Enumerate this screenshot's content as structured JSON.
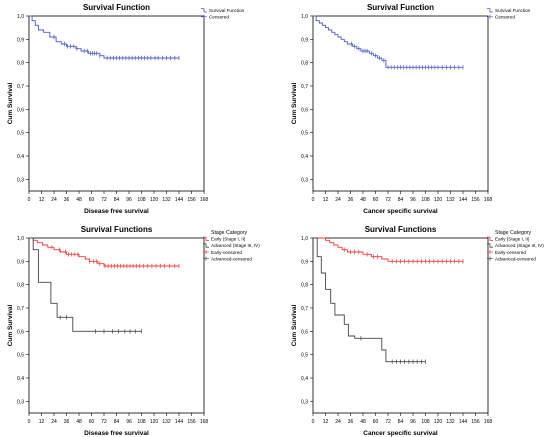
{
  "colors": {
    "blue": "#4a5cc0",
    "red": "#f03a3a",
    "black": "#444444",
    "frame": "#000000",
    "plot_bg": "#ffffff"
  },
  "chart_data": [
    {
      "type": "line",
      "title": "Survival Function",
      "xlabel": "Disease free survival",
      "ylabel": "Cum Survival",
      "xlim": [
        0,
        168
      ],
      "ylim": [
        0.25,
        1.0
      ],
      "xticks": [
        0,
        12,
        24,
        36,
        48,
        60,
        72,
        84,
        96,
        108,
        120,
        132,
        144,
        156,
        168
      ],
      "yticks": [
        0.3,
        0.4,
        0.5,
        0.6,
        0.7,
        0.8,
        0.9,
        1.0
      ],
      "ytick_labels": [
        "0,3",
        "0,4",
        "0,5",
        "0,6",
        "0,7",
        "0,8",
        "0,9",
        "1,0"
      ],
      "grid": false,
      "legend_title": "",
      "legend_position": "top-right",
      "legend": [
        "Survival Function",
        "Censored"
      ],
      "series": [
        {
          "name": "Survival Function",
          "color": "blue",
          "steps": [
            [
              0,
              1.0
            ],
            [
              3,
              0.98
            ],
            [
              6,
              0.96
            ],
            [
              9,
              0.94
            ],
            [
              14,
              0.93
            ],
            [
              20,
              0.91
            ],
            [
              26,
              0.89
            ],
            [
              31,
              0.88
            ],
            [
              36,
              0.87
            ],
            [
              45,
              0.86
            ],
            [
              50,
              0.85
            ],
            [
              57,
              0.84
            ],
            [
              68,
              0.83
            ],
            [
              72,
              0.82
            ],
            [
              144,
              0.82
            ]
          ],
          "censored": [
            24,
            34,
            37,
            40,
            43,
            46,
            53,
            56,
            59,
            61,
            63,
            65,
            68,
            75,
            78,
            81,
            84,
            87,
            90,
            93,
            96,
            99,
            102,
            105,
            108,
            111,
            114,
            117,
            121,
            124,
            128,
            132,
            136,
            140,
            144
          ]
        }
      ]
    },
    {
      "type": "line",
      "title": "Survival Function",
      "xlabel": "Cancer specific survival",
      "ylabel": "Cum Survival",
      "xlim": [
        0,
        168
      ],
      "ylim": [
        0.25,
        1.0
      ],
      "xticks": [
        0,
        12,
        24,
        36,
        48,
        60,
        72,
        84,
        96,
        108,
        120,
        132,
        144,
        156,
        168
      ],
      "yticks": [
        0.3,
        0.4,
        0.5,
        0.6,
        0.7,
        0.8,
        0.9,
        1.0
      ],
      "ytick_labels": [
        "0,3",
        "0,4",
        "0,5",
        "0,6",
        "0,7",
        "0,8",
        "0,9",
        "1,0"
      ],
      "grid": false,
      "legend_title": "",
      "legend_position": "top-right",
      "legend": [
        "Survival Function",
        "Censored"
      ],
      "series": [
        {
          "name": "Survival Function",
          "color": "blue",
          "steps": [
            [
              0,
              1.0
            ],
            [
              3,
              0.98
            ],
            [
              6,
              0.97
            ],
            [
              9,
              0.96
            ],
            [
              12,
              0.95
            ],
            [
              15,
              0.94
            ],
            [
              18,
              0.93
            ],
            [
              21,
              0.92
            ],
            [
              24,
              0.91
            ],
            [
              27,
              0.9
            ],
            [
              30,
              0.89
            ],
            [
              33,
              0.88
            ],
            [
              38,
              0.87
            ],
            [
              42,
              0.86
            ],
            [
              46,
              0.85
            ],
            [
              54,
              0.84
            ],
            [
              58,
              0.83
            ],
            [
              62,
              0.82
            ],
            [
              66,
              0.81
            ],
            [
              70,
              0.78
            ],
            [
              144,
              0.78
            ]
          ],
          "censored": [
            37,
            40,
            44,
            48,
            50,
            52,
            56,
            60,
            64,
            68,
            72,
            75,
            78,
            81,
            84,
            87,
            90,
            93,
            96,
            99,
            102,
            105,
            108,
            111,
            114,
            117,
            120,
            124,
            128,
            132,
            136,
            140,
            144
          ]
        }
      ]
    },
    {
      "type": "line",
      "title": "Survival Functions",
      "xlabel": "Disease free survival",
      "ylabel": "Cum Survival",
      "xlim": [
        0,
        168
      ],
      "ylim": [
        0.25,
        1.0
      ],
      "xticks": [
        0,
        12,
        24,
        36,
        48,
        60,
        72,
        84,
        96,
        108,
        120,
        132,
        144,
        156,
        168
      ],
      "yticks": [
        0.3,
        0.4,
        0.5,
        0.6,
        0.7,
        0.8,
        0.9,
        1.0
      ],
      "ytick_labels": [
        "0,3",
        "0,4",
        "0,5",
        "0,6",
        "0,7",
        "0,8",
        "0,9",
        "1,0"
      ],
      "grid": false,
      "legend_title": "Stage Category",
      "legend_position": "top-right",
      "legend": [
        "Early (Stage I, II)",
        "Advanced (Stage III, IV)",
        "Early-censored",
        "Advanced-censored"
      ],
      "series": [
        {
          "name": "Early (Stage I, II)",
          "color": "red",
          "steps": [
            [
              0,
              1.0
            ],
            [
              4,
              0.99
            ],
            [
              8,
              0.98
            ],
            [
              13,
              0.97
            ],
            [
              18,
              0.96
            ],
            [
              24,
              0.95
            ],
            [
              30,
              0.94
            ],
            [
              36,
              0.93
            ],
            [
              48,
              0.92
            ],
            [
              54,
              0.91
            ],
            [
              58,
              0.9
            ],
            [
              66,
              0.89
            ],
            [
              72,
              0.88
            ],
            [
              144,
              0.88
            ]
          ],
          "censored": [
            22,
            29,
            35,
            38,
            41,
            44,
            47,
            58,
            62,
            65,
            68,
            73,
            76,
            79,
            82,
            85,
            88,
            91,
            94,
            97,
            100,
            103,
            106,
            110,
            114,
            118,
            122,
            126,
            130,
            135,
            140,
            144
          ]
        },
        {
          "name": "Advanced (Stage III, IV)",
          "color": "black",
          "steps": [
            [
              0,
              1.0
            ],
            [
              4,
              0.95
            ],
            [
              9,
              0.81
            ],
            [
              21,
              0.72
            ],
            [
              27,
              0.66
            ],
            [
              42,
              0.6
            ],
            [
              108,
              0.6
            ]
          ],
          "censored": [
            30,
            36,
            64,
            72,
            80,
            86,
            92,
            97,
            102,
            108
          ]
        }
      ]
    },
    {
      "type": "line",
      "title": "Survival Functions",
      "xlabel": "Cancer specific survival",
      "ylabel": "Cum Survival",
      "xlim": [
        0,
        168
      ],
      "ylim": [
        0.25,
        1.0
      ],
      "xticks": [
        0,
        12,
        24,
        36,
        48,
        60,
        72,
        84,
        96,
        108,
        120,
        132,
        144,
        156,
        168
      ],
      "yticks": [
        0.3,
        0.4,
        0.5,
        0.6,
        0.7,
        0.8,
        0.9,
        1.0
      ],
      "ytick_labels": [
        "0,3",
        "0,4",
        "0,5",
        "0,6",
        "0,7",
        "0,8",
        "0,9",
        "1,0"
      ],
      "grid": false,
      "legend_title": "Stage Category",
      "legend_position": "top-right",
      "legend": [
        "Early (Stage I, II)",
        "Advanced (Stage III, IV)",
        "Early-censored",
        "Advanced-censored"
      ],
      "series": [
        {
          "name": "Early (Stage I, II)",
          "color": "red",
          "steps": [
            [
              0,
              1.0
            ],
            [
              12,
              0.99
            ],
            [
              16,
              0.98
            ],
            [
              20,
              0.97
            ],
            [
              24,
              0.96
            ],
            [
              28,
              0.95
            ],
            [
              33,
              0.94
            ],
            [
              48,
              0.93
            ],
            [
              56,
              0.92
            ],
            [
              66,
              0.91
            ],
            [
              72,
              0.9
            ],
            [
              144,
              0.9
            ]
          ],
          "censored": [
            30,
            36,
            40,
            44,
            52,
            58,
            62,
            76,
            80,
            84,
            88,
            92,
            96,
            100,
            104,
            108,
            112,
            116,
            120,
            124,
            128,
            132,
            136,
            140,
            144
          ]
        },
        {
          "name": "Advanced (Stage III, IV)",
          "color": "black",
          "steps": [
            [
              0,
              1.0
            ],
            [
              4,
              0.92
            ],
            [
              8,
              0.85
            ],
            [
              12,
              0.78
            ],
            [
              17,
              0.72
            ],
            [
              21,
              0.67
            ],
            [
              30,
              0.63
            ],
            [
              34,
              0.58
            ],
            [
              40,
              0.57
            ],
            [
              66,
              0.52
            ],
            [
              70,
              0.47
            ],
            [
              108,
              0.47
            ]
          ],
          "censored": [
            46,
            76,
            80,
            84,
            88,
            92,
            96,
            100,
            104,
            108
          ]
        }
      ]
    }
  ]
}
